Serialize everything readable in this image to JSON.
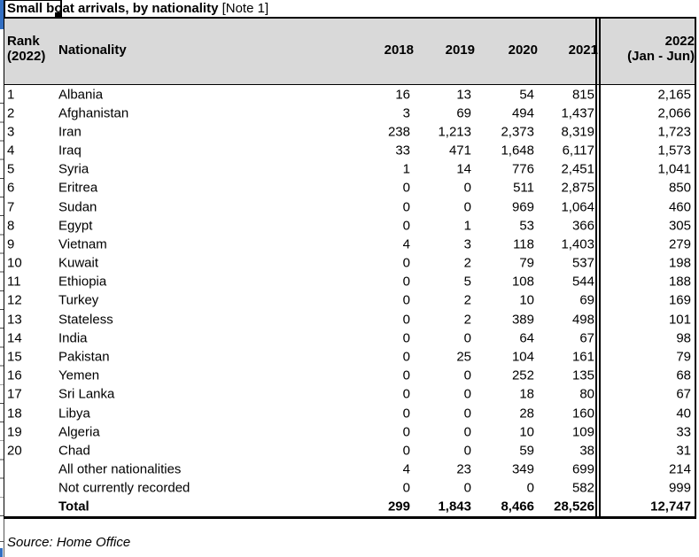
{
  "title": {
    "main": "Small boat arrivals, by nationality",
    "note": "[Note 1]"
  },
  "table": {
    "headers": {
      "rank_line1": "Rank",
      "rank_line2": "(2022)",
      "nationality": "Nationality",
      "y2018": "2018",
      "y2019": "2019",
      "y2020": "2020",
      "y2021": "2021",
      "y2022_line1": "2022",
      "y2022_line2": "(Jan - Jun)"
    },
    "rows": [
      {
        "rank": "1",
        "nationality": "Albania",
        "y2018": "16",
        "y2019": "13",
        "y2020": "54",
        "y2021": "815",
        "y2022": "2,165",
        "bold": false
      },
      {
        "rank": "2",
        "nationality": "Afghanistan",
        "y2018": "3",
        "y2019": "69",
        "y2020": "494",
        "y2021": "1,437",
        "y2022": "2,066",
        "bold": false
      },
      {
        "rank": "3",
        "nationality": "Iran",
        "y2018": "238",
        "y2019": "1,213",
        "y2020": "2,373",
        "y2021": "8,319",
        "y2022": "1,723",
        "bold": false
      },
      {
        "rank": "4",
        "nationality": "Iraq",
        "y2018": "33",
        "y2019": "471",
        "y2020": "1,648",
        "y2021": "6,117",
        "y2022": "1,573",
        "bold": false
      },
      {
        "rank": "5",
        "nationality": "Syria",
        "y2018": "1",
        "y2019": "14",
        "y2020": "776",
        "y2021": "2,451",
        "y2022": "1,041",
        "bold": false
      },
      {
        "rank": "6",
        "nationality": "Eritrea",
        "y2018": "0",
        "y2019": "0",
        "y2020": "511",
        "y2021": "2,875",
        "y2022": "850",
        "bold": false
      },
      {
        "rank": "7",
        "nationality": "Sudan",
        "y2018": "0",
        "y2019": "0",
        "y2020": "969",
        "y2021": "1,064",
        "y2022": "460",
        "bold": false
      },
      {
        "rank": "8",
        "nationality": "Egypt",
        "y2018": "0",
        "y2019": "1",
        "y2020": "53",
        "y2021": "366",
        "y2022": "305",
        "bold": false
      },
      {
        "rank": "9",
        "nationality": "Vietnam",
        "y2018": "4",
        "y2019": "3",
        "y2020": "118",
        "y2021": "1,403",
        "y2022": "279",
        "bold": false
      },
      {
        "rank": "10",
        "nationality": "Kuwait",
        "y2018": "0",
        "y2019": "2",
        "y2020": "79",
        "y2021": "537",
        "y2022": "198",
        "bold": false
      },
      {
        "rank": "11",
        "nationality": "Ethiopia",
        "y2018": "0",
        "y2019": "5",
        "y2020": "108",
        "y2021": "544",
        "y2022": "188",
        "bold": false
      },
      {
        "rank": "12",
        "nationality": "Turkey",
        "y2018": "0",
        "y2019": "2",
        "y2020": "10",
        "y2021": "69",
        "y2022": "169",
        "bold": false
      },
      {
        "rank": "13",
        "nationality": "Stateless",
        "y2018": "0",
        "y2019": "2",
        "y2020": "389",
        "y2021": "498",
        "y2022": "101",
        "bold": false
      },
      {
        "rank": "14",
        "nationality": "India",
        "y2018": "0",
        "y2019": "0",
        "y2020": "64",
        "y2021": "67",
        "y2022": "98",
        "bold": false
      },
      {
        "rank": "15",
        "nationality": "Pakistan",
        "y2018": "0",
        "y2019": "25",
        "y2020": "104",
        "y2021": "161",
        "y2022": "79",
        "bold": false
      },
      {
        "rank": "16",
        "nationality": "Yemen",
        "y2018": "0",
        "y2019": "0",
        "y2020": "252",
        "y2021": "135",
        "y2022": "68",
        "bold": false
      },
      {
        "rank": "17",
        "nationality": "Sri Lanka",
        "y2018": "0",
        "y2019": "0",
        "y2020": "18",
        "y2021": "80",
        "y2022": "67",
        "bold": false
      },
      {
        "rank": "18",
        "nationality": "Libya",
        "y2018": "0",
        "y2019": "0",
        "y2020": "28",
        "y2021": "160",
        "y2022": "40",
        "bold": false
      },
      {
        "rank": "19",
        "nationality": "Algeria",
        "y2018": "0",
        "y2019": "0",
        "y2020": "10",
        "y2021": "109",
        "y2022": "33",
        "bold": false
      },
      {
        "rank": "20",
        "nationality": "Chad",
        "y2018": "0",
        "y2019": "0",
        "y2020": "59",
        "y2021": "38",
        "y2022": "31",
        "bold": false
      },
      {
        "rank": "",
        "nationality": "All other nationalities",
        "y2018": "4",
        "y2019": "23",
        "y2020": "349",
        "y2021": "699",
        "y2022": "214",
        "bold": false
      },
      {
        "rank": "",
        "nationality": "Not currently recorded",
        "y2018": "0",
        "y2019": "0",
        "y2020": "0",
        "y2021": "582",
        "y2022": "999",
        "bold": false
      },
      {
        "rank": "",
        "nationality": "Total",
        "y2018": "299",
        "y2019": "1,843",
        "y2020": "8,466",
        "y2021": "28,526",
        "y2022": "12,747",
        "bold": true
      }
    ]
  },
  "source": "Source: Home Office",
  "colors": {
    "header_bg": "#d9d9d9",
    "selection_blue": "#336fc2",
    "border": "#000000"
  }
}
